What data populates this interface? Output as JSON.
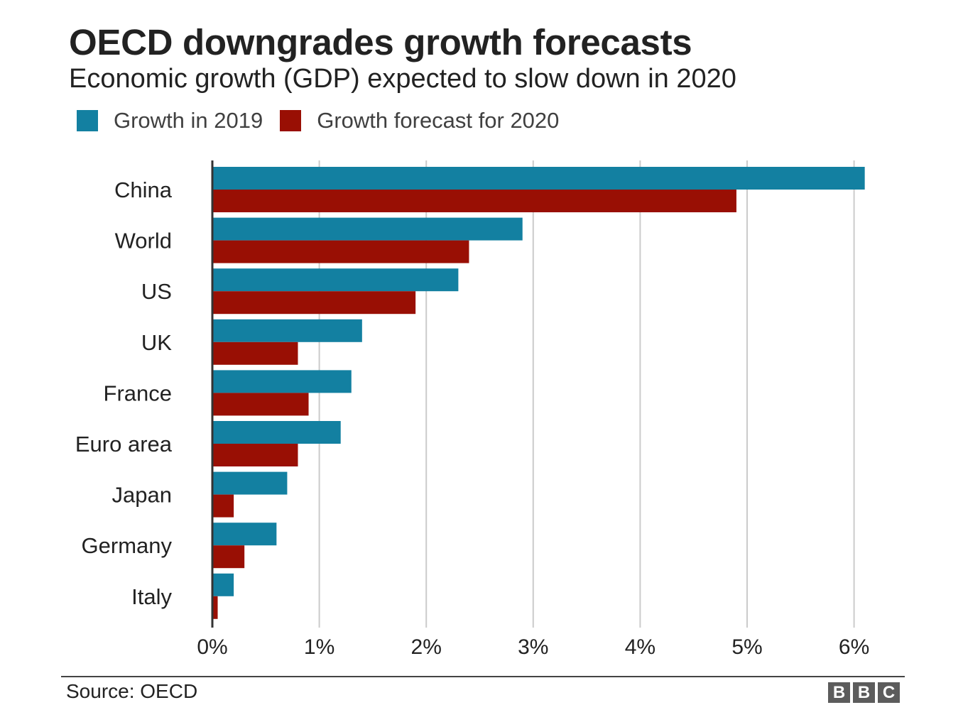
{
  "chart_data": {
    "type": "bar",
    "orientation": "horizontal",
    "title": "OECD downgrades growth forecasts",
    "subtitle": "Economic growth (GDP) expected to slow down in 2020",
    "categories": [
      "China",
      "World",
      "US",
      "UK",
      "France",
      "Euro area",
      "Japan",
      "Germany",
      "Italy"
    ],
    "series": [
      {
        "name": "Growth in 2019",
        "color": "#1380a1",
        "values": [
          6.1,
          2.9,
          2.3,
          1.4,
          1.3,
          1.2,
          0.7,
          0.6,
          0.2
        ]
      },
      {
        "name": "Growth forecast for 2020",
        "color": "#990f04",
        "values": [
          4.9,
          2.4,
          1.9,
          0.8,
          0.9,
          0.8,
          0.2,
          0.3,
          0.05
        ]
      }
    ],
    "xlim": [
      0,
      6
    ],
    "xticks": [
      0,
      1,
      2,
      3,
      4,
      5,
      6
    ],
    "xtick_labels": [
      "0%",
      "1%",
      "2%",
      "3%",
      "4%",
      "5%",
      "6%"
    ],
    "grid": true,
    "legend_position": "top-left"
  },
  "footer": {
    "source": "Source: OECD",
    "logo_letters": [
      "B",
      "B",
      "C"
    ]
  }
}
